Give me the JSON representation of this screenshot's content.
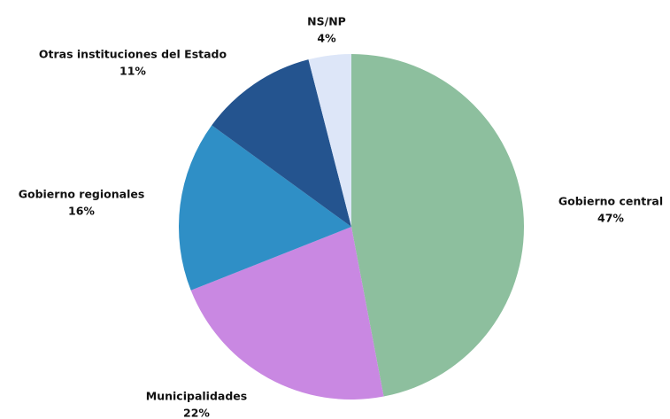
{
  "chart_data": {
    "type": "pie",
    "categories": [
      "Gobierno central",
      "Municipalidades",
      "Gobierno regionales",
      "Otras instituciones del Estado",
      "NS/NP"
    ],
    "values": [
      47,
      22,
      16,
      11,
      4
    ],
    "value_labels": [
      "47%",
      "22%",
      "16%",
      "11%",
      "4%"
    ],
    "colors": [
      "#8dbf9e",
      "#c988e2",
      "#2f8fc6",
      "#24548f",
      "#dde6f8"
    ]
  }
}
